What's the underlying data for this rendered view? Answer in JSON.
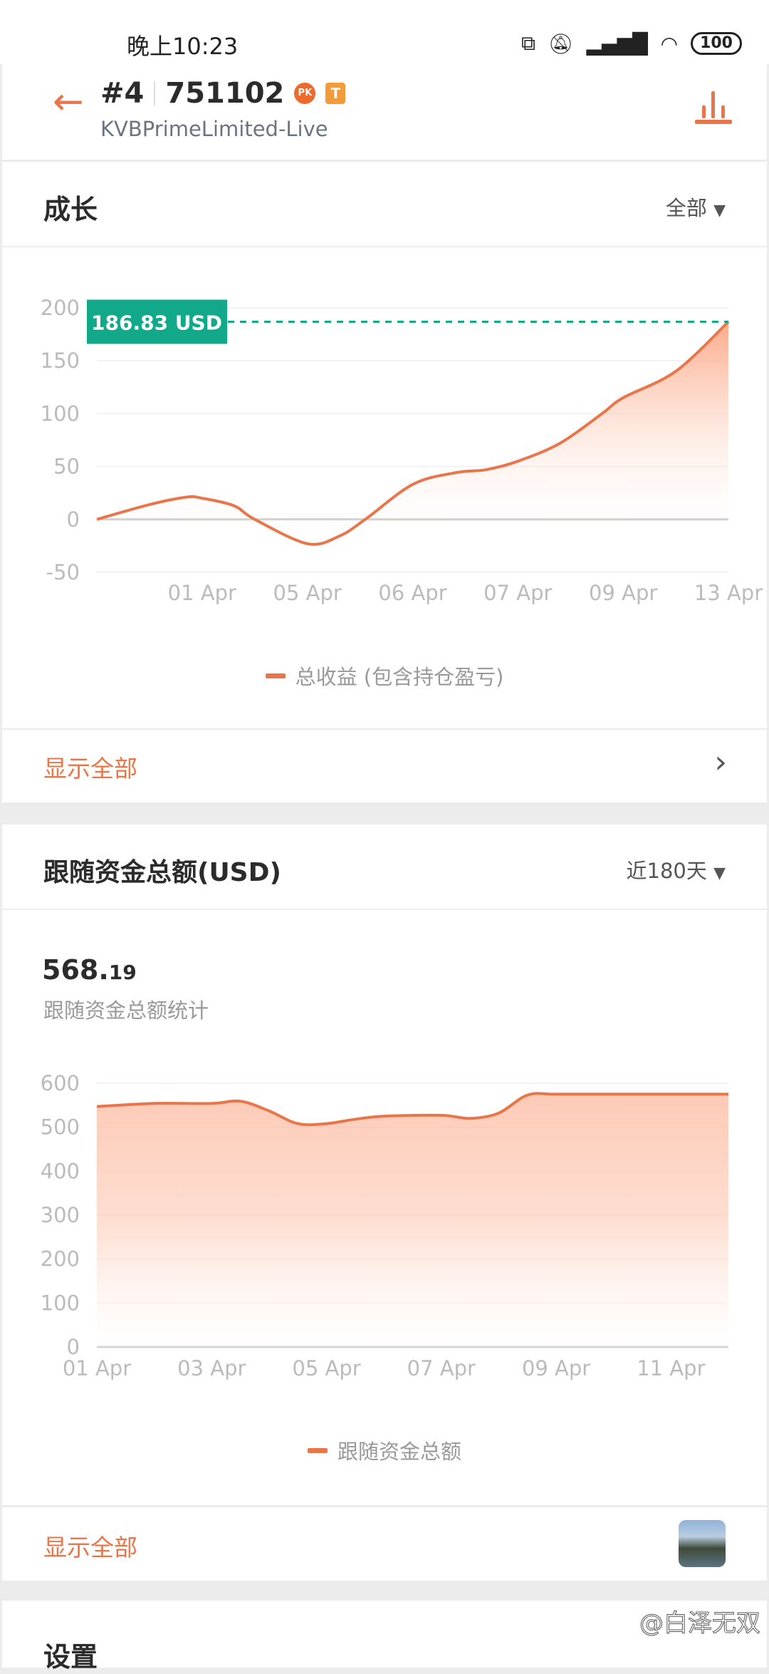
{
  "status_bar": {
    "time": "晚上10:23",
    "battery": "100",
    "icons": [
      "screen-rotate-icon",
      "bell-off-icon",
      "signal-hd-icon",
      "wifi-icon",
      "battery-icon"
    ]
  },
  "header": {
    "rank": "#4",
    "account": "751102",
    "badge_pk": "PK",
    "badge_t": "T",
    "broker": "KVBPrimeLimited-Live",
    "icons": [
      "back-arrow-icon",
      "fire-pk-icon",
      "stats-bar-icon"
    ]
  },
  "growth": {
    "title": "成长",
    "filter": "全部",
    "show_all": "显示全部",
    "legend": "总收益 (包含持仓盈亏)"
  },
  "fund": {
    "title": "跟随资金总额(USD)",
    "filter": "近180天",
    "amount_int": "568.",
    "amount_dec": "19",
    "amount_label": "跟随资金总额统计",
    "show_all": "显示全部",
    "legend": "跟随资金总额"
  },
  "settings": {
    "title": "设置"
  },
  "watermark": "@白泽无双",
  "colors": {
    "accent": "#e8764a",
    "badge": "#12a98a",
    "text": "#2b2b2b"
  },
  "chart_data": [
    {
      "type": "area",
      "categories": [
        "",
        "01 Apr",
        "05 Apr",
        "06 Apr",
        "07 Apr",
        "09 Apr",
        "13 Apr"
      ],
      "points": [
        [
          0,
          0
        ],
        [
          0.5,
          14
        ],
        [
          0.85,
          21
        ],
        [
          1,
          20
        ],
        [
          1.3,
          13
        ],
        [
          1.5,
          0
        ],
        [
          2,
          -23
        ],
        [
          2.3,
          -16
        ],
        [
          2.55,
          0
        ],
        [
          3,
          33
        ],
        [
          3.4,
          44
        ],
        [
          3.7,
          47
        ],
        [
          4,
          55
        ],
        [
          4.4,
          72
        ],
        [
          4.8,
          100
        ],
        [
          5,
          115
        ],
        [
          5.5,
          140
        ],
        [
          6,
          186.83
        ]
      ],
      "yticks": [
        200,
        150,
        100,
        50,
        0,
        -50
      ],
      "ylim": [
        -50,
        200
      ],
      "last_value_label": "186.83 USD",
      "series": [
        {
          "name": "总收益 (包含持仓盈亏)"
        }
      ],
      "legend": "bottom",
      "grid": true
    },
    {
      "type": "area",
      "x": [
        "01 Apr",
        "02 Apr",
        "03 Apr",
        "03.5",
        "04 Apr",
        "04.5",
        "05 Apr",
        "05.5",
        "06 Apr",
        "07 Apr",
        "07.5",
        "08 Apr",
        "08.5",
        "09 Apr",
        "10 Apr",
        "11 Apr",
        "12 Apr"
      ],
      "xnum": [
        1,
        2,
        3,
        3.5,
        4,
        4.5,
        5,
        5.5,
        6,
        7,
        7.5,
        8,
        8.5,
        9,
        10,
        11,
        12
      ],
      "values": [
        547,
        554,
        554,
        559,
        537,
        508,
        508,
        518,
        525,
        527,
        520,
        532,
        573,
        575,
        575,
        575,
        575
      ],
      "xticks": [
        "01 Apr",
        "03 Apr",
        "05 Apr",
        "07 Apr",
        "09 Apr",
        "11 Apr"
      ],
      "xtick_days": [
        1,
        3,
        5,
        7,
        9,
        11
      ],
      "xlim": [
        1,
        12
      ],
      "yticks": [
        600,
        500,
        400,
        300,
        200,
        100,
        0
      ],
      "ylim": [
        0,
        600
      ],
      "series": [
        {
          "name": "跟随资金总额"
        }
      ],
      "legend": "bottom",
      "grid": true
    }
  ]
}
